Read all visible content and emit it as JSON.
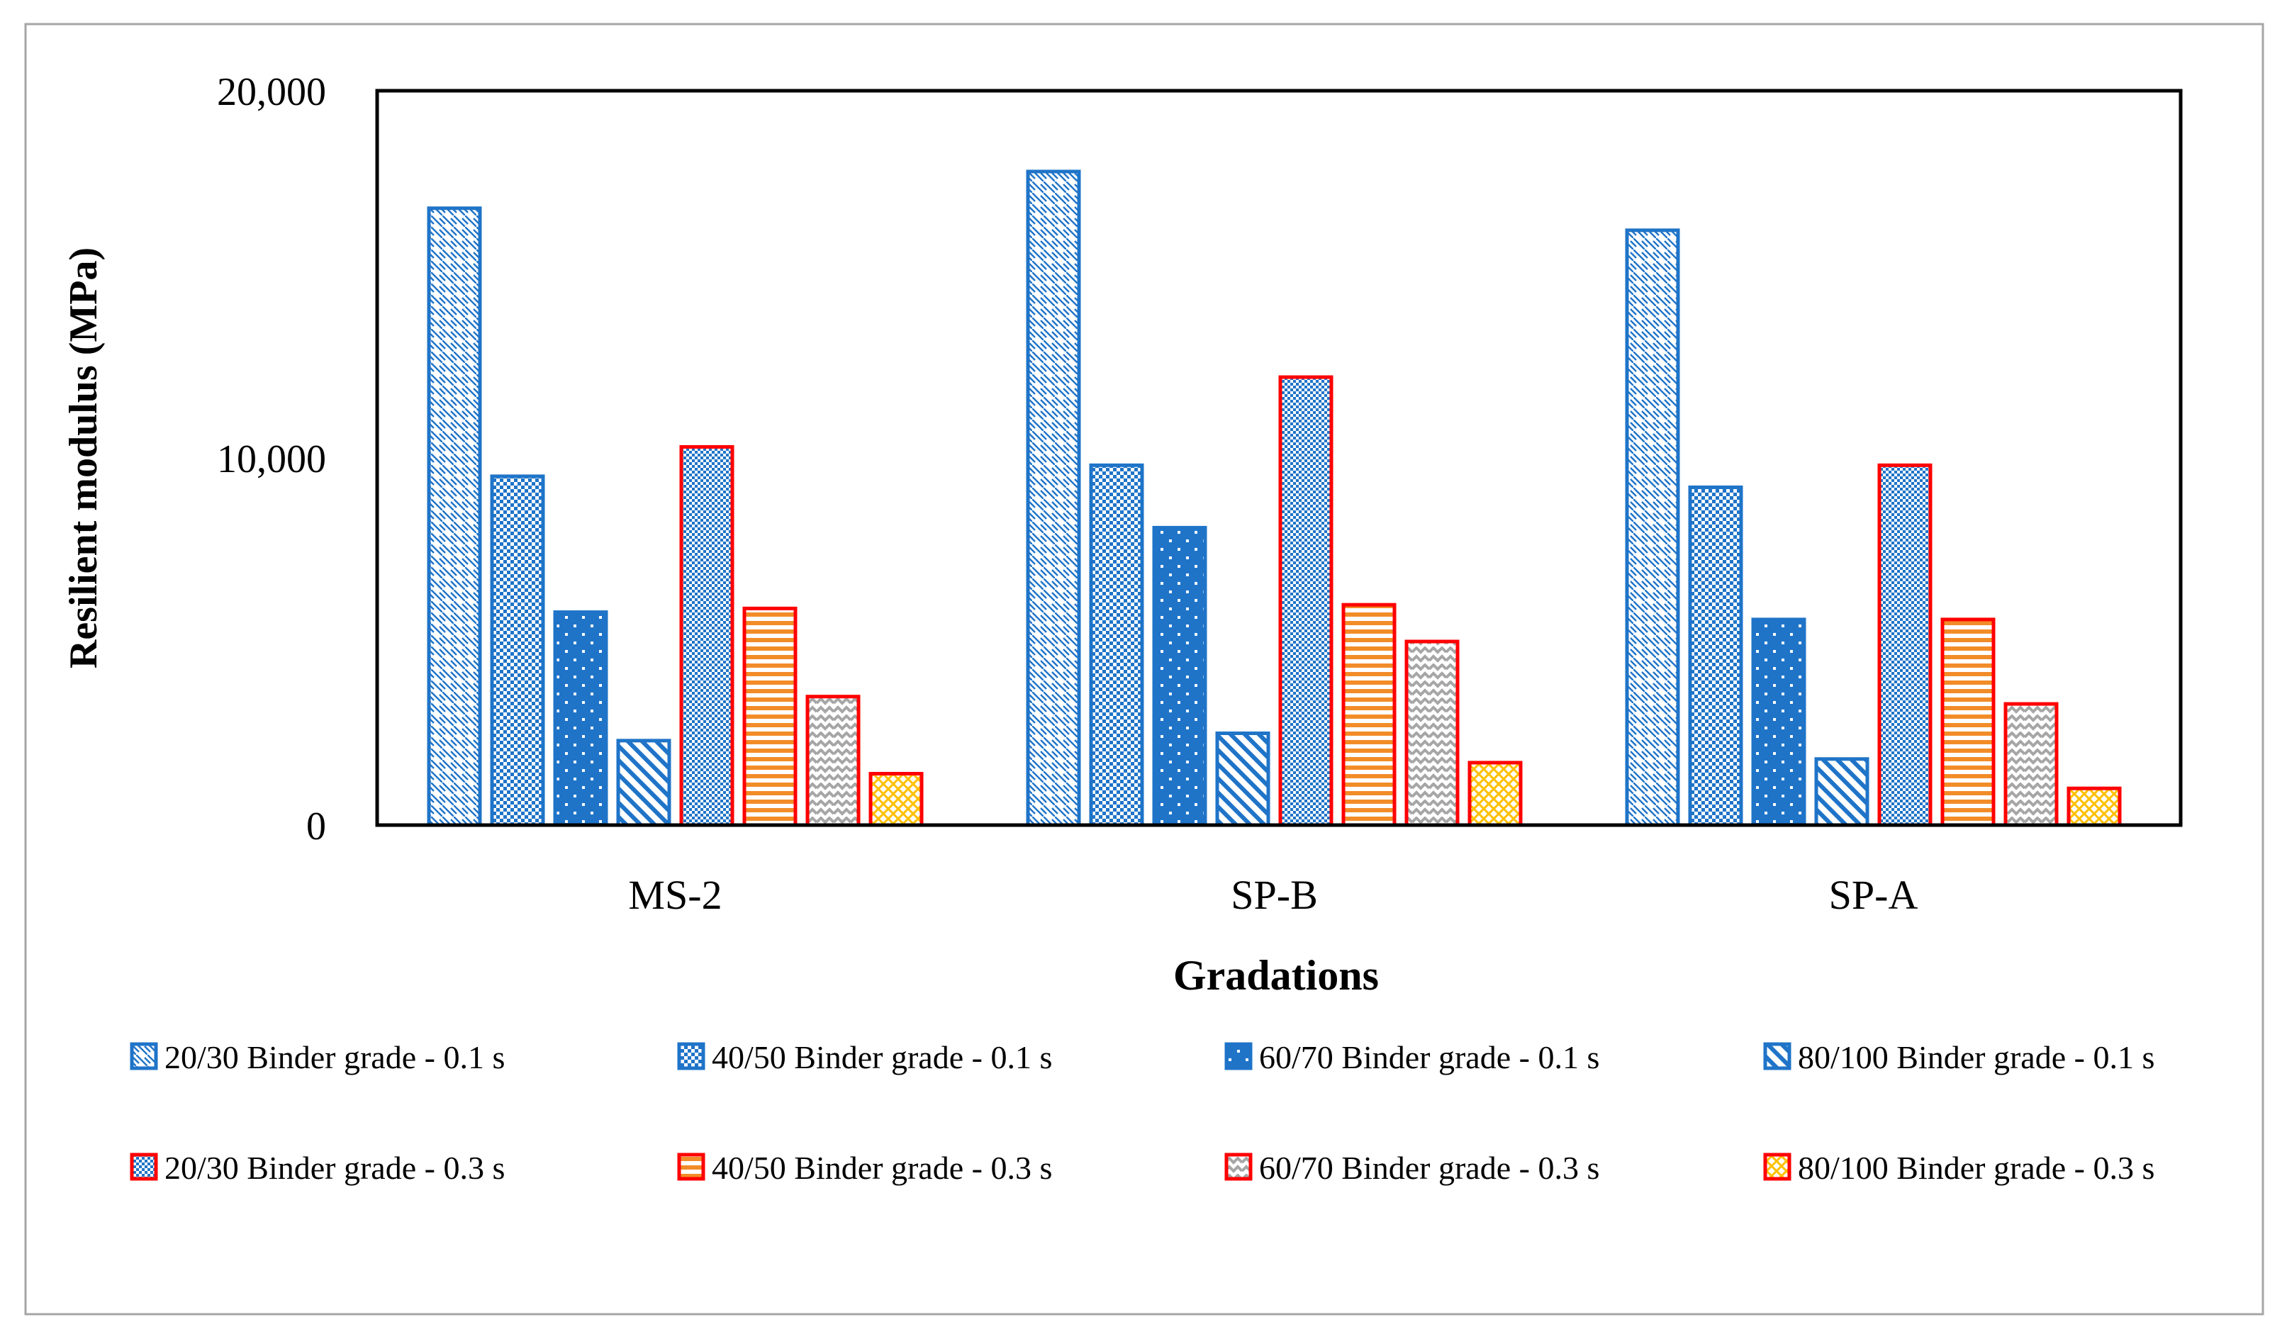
{
  "chart_data": {
    "type": "bar",
    "title": "",
    "xlabel": "Gradations",
    "ylabel": "Resilient modulus (MPa)",
    "ylim": [
      0,
      20000
    ],
    "yticks": [
      0,
      10000,
      20000
    ],
    "ytick_labels": [
      "0",
      "10,000",
      "20,000"
    ],
    "grid": false,
    "legend_position": "bottom",
    "categories": [
      "MS-2",
      "SP-B",
      "SP-A"
    ],
    "series": [
      {
        "name": "20/30 Binder grade - 0.1 s",
        "values": [
          16800,
          17800,
          16200
        ],
        "fill": "#1f74c8",
        "stroke": "#1f74c8",
        "pattern": "diag-down"
      },
      {
        "name": "40/50 Binder grade - 0.1 s",
        "values": [
          9500,
          9800,
          9200
        ],
        "fill": "#1f74c8",
        "stroke": "#1f74c8",
        "pattern": "checker"
      },
      {
        "name": "60/70 Binder grade - 0.1 s",
        "values": [
          5800,
          8100,
          5600
        ],
        "fill": "#1f74c8",
        "stroke": "#1f74c8",
        "pattern": "dots"
      },
      {
        "name": "80/100 Binder grade - 0.1 s",
        "values": [
          2300,
          2500,
          1800
        ],
        "fill": "#1f74c8",
        "stroke": "#1f74c8",
        "pattern": "diag-bold"
      },
      {
        "name": "20/30 Binder grade - 0.3 s",
        "values": [
          10300,
          12200,
          9800
        ],
        "fill": "#1f74c8",
        "stroke": "#ff0000",
        "pattern": "checker-fine"
      },
      {
        "name": "40/50 Binder grade - 0.3 s",
        "values": [
          5900,
          6000,
          5600
        ],
        "fill": "#f28c28",
        "stroke": "#ff0000",
        "pattern": "horizontal"
      },
      {
        "name": "60/70 Binder grade - 0.3 s",
        "values": [
          3500,
          5000,
          3300
        ],
        "fill": "#a6a6a6",
        "stroke": "#ff0000",
        "pattern": "zigzag"
      },
      {
        "name": "80/100 Binder grade - 0.3 s",
        "values": [
          1400,
          1700,
          1000
        ],
        "fill": "#ffc000",
        "stroke": "#ff0000",
        "pattern": "lattice"
      }
    ]
  }
}
